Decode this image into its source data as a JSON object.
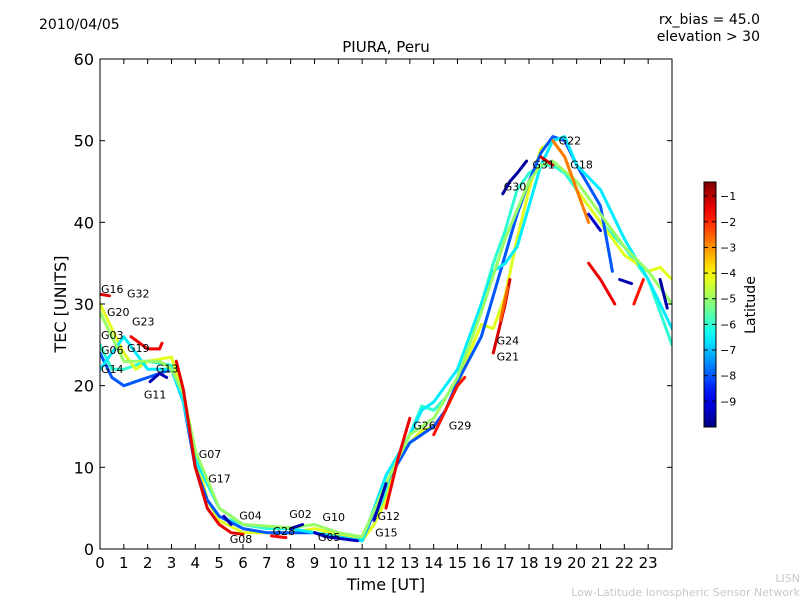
{
  "header": {
    "date": "2010/04/05",
    "rx_bias": "rx_bias = 45.0",
    "elevation": "elevation > 30"
  },
  "footer": {
    "org_short": "LISN",
    "org_long": "Low-Latitude Ionospheric Sensor Network"
  },
  "chart_data": {
    "type": "line",
    "title": "PIURA, Peru",
    "xlabel": "Time [UT]",
    "ylabel": "TEC [UNITS]",
    "xlim": [
      0,
      24
    ],
    "ylim": [
      0,
      60
    ],
    "xticks": [
      "0",
      "1",
      "2",
      "3",
      "4",
      "5",
      "6",
      "7",
      "8",
      "9",
      "10",
      "11",
      "12",
      "13",
      "14",
      "15",
      "16",
      "17",
      "18",
      "19",
      "20",
      "21",
      "22",
      "23"
    ],
    "yticks": [
      "0",
      "10",
      "20",
      "30",
      "40",
      "50",
      "60"
    ],
    "grid": false,
    "colorbar": {
      "label": "Latitude",
      "range": [
        -10,
        -0.45
      ],
      "ticks": [
        "-1",
        "-2",
        "-3",
        "-4",
        "-5",
        "-6",
        "-7",
        "-8",
        "-9"
      ],
      "colormap": "jet"
    },
    "series": [
      {
        "name": "track-green",
        "lat": -6,
        "points": [
          [
            0,
            25
          ],
          [
            0.5,
            22
          ],
          [
            1,
            22
          ],
          [
            2,
            23
          ],
          [
            3,
            22.5
          ],
          [
            3.5,
            18
          ],
          [
            4,
            11
          ],
          [
            4.5,
            6
          ],
          [
            5,
            4
          ],
          [
            6,
            3
          ],
          [
            7,
            2.5
          ],
          [
            8,
            2.5
          ],
          [
            9,
            2
          ],
          [
            10,
            1.5
          ],
          [
            11,
            1.2
          ],
          [
            11.5,
            3
          ],
          [
            12,
            7
          ],
          [
            12.5,
            11
          ],
          [
            13,
            14
          ],
          [
            13.5,
            17.5
          ],
          [
            14,
            17
          ],
          [
            14.5,
            18.5
          ],
          [
            15,
            21
          ],
          [
            15.5,
            25
          ],
          [
            16,
            30
          ],
          [
            16.5,
            35
          ],
          [
            17,
            39
          ],
          [
            17.5,
            44
          ],
          [
            18,
            46
          ],
          [
            18.5,
            47
          ],
          [
            19,
            47
          ],
          [
            19.5,
            46
          ],
          [
            20,
            44
          ],
          [
            20.5,
            42
          ],
          [
            21,
            40
          ],
          [
            22,
            37
          ],
          [
            23,
            33
          ],
          [
            24,
            25
          ]
        ]
      },
      {
        "name": "track-yellowgreen",
        "lat": -4.3,
        "points": [
          [
            0,
            30
          ],
          [
            0.5,
            27
          ],
          [
            1,
            24
          ],
          [
            1.5,
            22
          ],
          [
            2,
            23
          ],
          [
            3,
            23.5
          ],
          [
            3.5,
            19
          ],
          [
            4,
            12
          ],
          [
            4.5,
            6
          ],
          [
            5,
            3.5
          ],
          [
            6,
            2
          ],
          [
            7,
            2
          ],
          [
            8,
            2
          ],
          [
            9,
            2.5
          ],
          [
            10,
            1.8
          ],
          [
            11,
            1
          ],
          [
            11.5,
            3
          ],
          [
            12,
            6
          ],
          [
            12.5,
            11
          ],
          [
            13,
            13
          ],
          [
            13.5,
            14.5
          ],
          [
            14,
            15
          ],
          [
            14.5,
            17
          ],
          [
            15,
            20
          ],
          [
            15.5,
            24
          ],
          [
            16,
            27.5
          ],
          [
            16.5,
            27
          ],
          [
            17,
            31
          ],
          [
            17.5,
            38
          ],
          [
            18,
            44
          ],
          [
            18.5,
            49
          ],
          [
            19,
            50
          ],
          [
            19.5,
            48
          ],
          [
            20,
            44
          ],
          [
            21,
            40
          ],
          [
            22,
            36
          ],
          [
            23,
            34
          ],
          [
            23.5,
            34.5
          ],
          [
            24,
            33
          ]
        ]
      },
      {
        "name": "track-cyan",
        "lat": -8,
        "points": [
          [
            0,
            24
          ],
          [
            0.5,
            21
          ],
          [
            1,
            20
          ],
          [
            1.5,
            20.5
          ],
          [
            2,
            21
          ],
          [
            3,
            22
          ],
          [
            3.5,
            18
          ],
          [
            4,
            10
          ],
          [
            4.5,
            6
          ],
          [
            5,
            4
          ],
          [
            6,
            2.5
          ],
          [
            7,
            2
          ],
          [
            8,
            2
          ],
          [
            9,
            2
          ],
          [
            10,
            1.5
          ],
          [
            11,
            1
          ],
          [
            12,
            8
          ],
          [
            13,
            13
          ],
          [
            14,
            15
          ],
          [
            14.5,
            17
          ],
          [
            15,
            20.5
          ],
          [
            16,
            26
          ],
          [
            17,
            36
          ],
          [
            17.5,
            41
          ],
          [
            18,
            45
          ],
          [
            18.5,
            48.5
          ],
          [
            19,
            50.5
          ],
          [
            19.5,
            50
          ],
          [
            20,
            47
          ],
          [
            21,
            42
          ],
          [
            21.5,
            34
          ]
        ]
      },
      {
        "name": "track-darkgreen",
        "lat": -6.6,
        "points": [
          [
            0,
            22
          ],
          [
            0.5,
            24
          ],
          [
            1,
            26
          ],
          [
            1.5,
            24
          ],
          [
            2,
            22
          ],
          [
            3,
            22
          ],
          [
            3.5,
            18
          ],
          [
            4,
            11
          ],
          [
            5,
            5
          ],
          [
            6,
            3
          ],
          [
            8,
            2.5
          ],
          [
            10,
            1.5
          ],
          [
            11,
            1
          ],
          [
            12,
            9
          ],
          [
            13,
            14
          ],
          [
            13.5,
            17
          ],
          [
            14,
            18
          ],
          [
            15,
            22
          ],
          [
            16,
            30
          ],
          [
            16.5,
            34
          ],
          [
            17,
            35
          ],
          [
            17.5,
            37
          ],
          [
            18,
            42
          ],
          [
            18.5,
            47
          ],
          [
            19,
            50
          ],
          [
            19.5,
            50.5
          ],
          [
            20,
            47
          ],
          [
            21,
            44
          ],
          [
            22,
            38
          ],
          [
            23,
            33
          ],
          [
            24,
            27
          ]
        ]
      },
      {
        "name": "track-lightgreen",
        "lat": -5,
        "points": [
          [
            0,
            29
          ],
          [
            0.5,
            26
          ],
          [
            1,
            23
          ],
          [
            2,
            23
          ],
          [
            2.5,
            23
          ],
          [
            3,
            22
          ],
          [
            3.5,
            19
          ],
          [
            4,
            12
          ],
          [
            5,
            5
          ],
          [
            6,
            3
          ],
          [
            7,
            2.8
          ],
          [
            8,
            2.6
          ],
          [
            9,
            3
          ],
          [
            10,
            2
          ],
          [
            11,
            1.5
          ],
          [
            12,
            8
          ],
          [
            13,
            14
          ],
          [
            14,
            16
          ],
          [
            15,
            21
          ],
          [
            16,
            29
          ],
          [
            17,
            38
          ],
          [
            18,
            45
          ],
          [
            18.5,
            47
          ],
          [
            19,
            47.5
          ],
          [
            20,
            45
          ],
          [
            21,
            41
          ],
          [
            22,
            37
          ],
          [
            23,
            34
          ],
          [
            24,
            30
          ]
        ]
      },
      {
        "name": "track-red-1",
        "lat": -1.3,
        "points": [
          [
            0,
            31.2
          ],
          [
            0.4,
            31
          ]
        ]
      },
      {
        "name": "track-red-2",
        "lat": -1.5,
        "points": [
          [
            1.3,
            26
          ],
          [
            2,
            24.5
          ],
          [
            2.5,
            24.5
          ],
          [
            2.6,
            25.2
          ]
        ]
      },
      {
        "name": "track-red-3",
        "lat": -1.4,
        "points": [
          [
            3.2,
            23
          ],
          [
            3.5,
            19.5
          ],
          [
            4,
            10
          ],
          [
            4.5,
            5
          ],
          [
            5,
            3
          ],
          [
            5.5,
            2
          ],
          [
            6,
            1.8
          ]
        ]
      },
      {
        "name": "track-red-4",
        "lat": -1.6,
        "points": [
          [
            7.2,
            1.6
          ],
          [
            7.8,
            1.4
          ]
        ]
      },
      {
        "name": "track-red-5",
        "lat": -1.5,
        "points": [
          [
            12,
            5
          ],
          [
            12.5,
            11
          ],
          [
            13,
            16
          ]
        ]
      },
      {
        "name": "track-red-6",
        "lat": -1.8,
        "points": [
          [
            14,
            14
          ],
          [
            14.5,
            17
          ],
          [
            15,
            20
          ],
          [
            15.3,
            21
          ]
        ]
      },
      {
        "name": "track-red-7",
        "lat": -1.3,
        "points": [
          [
            16.5,
            24
          ],
          [
            17,
            30
          ],
          [
            17.2,
            33
          ]
        ]
      },
      {
        "name": "track-red-8",
        "lat": -1.2,
        "points": [
          [
            18.5,
            48
          ],
          [
            19,
            47
          ]
        ]
      },
      {
        "name": "track-red-9",
        "lat": -1.5,
        "points": [
          [
            20.5,
            35
          ],
          [
            21,
            33
          ],
          [
            21.6,
            30
          ]
        ]
      },
      {
        "name": "track-red-10",
        "lat": -1.8,
        "points": [
          [
            22.4,
            30
          ],
          [
            22.8,
            33
          ]
        ]
      },
      {
        "name": "track-orange-1",
        "lat": -2.6,
        "points": [
          [
            16.8,
            28
          ],
          [
            17.1,
            32
          ]
        ]
      },
      {
        "name": "track-orange-2",
        "lat": -2.8,
        "points": [
          [
            19,
            50
          ],
          [
            19.5,
            48
          ],
          [
            20,
            44
          ],
          [
            20.5,
            40
          ]
        ]
      },
      {
        "name": "track-blue-1",
        "lat": -9.5,
        "points": [
          [
            2.1,
            20.5
          ],
          [
            2.5,
            21.5
          ],
          [
            2.8,
            21
          ]
        ]
      },
      {
        "name": "track-blue-2",
        "lat": -9.5,
        "points": [
          [
            5.2,
            4
          ],
          [
            5.5,
            3
          ]
        ]
      },
      {
        "name": "track-blue-3",
        "lat": -9.6,
        "points": [
          [
            8,
            2.5
          ],
          [
            8.5,
            3
          ]
        ]
      },
      {
        "name": "track-blue-4",
        "lat": -9.4,
        "points": [
          [
            9,
            2
          ],
          [
            9.5,
            1.5
          ],
          [
            10.8,
            1
          ]
        ]
      },
      {
        "name": "track-blue-5",
        "lat": -9.5,
        "points": [
          [
            11.5,
            3.5
          ],
          [
            12,
            8
          ]
        ]
      },
      {
        "name": "track-blue-6",
        "lat": -9.7,
        "points": [
          [
            16.9,
            43.5
          ],
          [
            17.2,
            45
          ],
          [
            17.5,
            46
          ],
          [
            17.9,
            47.5
          ]
        ]
      },
      {
        "name": "track-blue-7",
        "lat": -9.3,
        "points": [
          [
            20.5,
            41
          ],
          [
            21,
            39
          ]
        ]
      },
      {
        "name": "track-blue-8",
        "lat": -9.5,
        "points": [
          [
            21.8,
            33
          ],
          [
            22.3,
            32.5
          ]
        ]
      },
      {
        "name": "track-blue-9",
        "lat": -9.6,
        "points": [
          [
            23.5,
            33
          ],
          [
            23.8,
            29.5
          ]
        ]
      }
    ],
    "annotations": [
      {
        "text": "G16",
        "x": 0,
        "y": 31.2
      },
      {
        "text": "G20",
        "x": 0.25,
        "y": 29.9
      },
      {
        "text": "G32",
        "x": 0,
        "y": 29.2
      },
      {
        "text": "G03",
        "x": 0,
        "y": 25.6
      },
      {
        "text": "G06",
        "x": 0,
        "y": 25.2
      },
      {
        "text": "G19",
        "x": 0,
        "y": 24
      },
      {
        "text": "G14",
        "x": 0,
        "y": 21.4
      },
      {
        "text": "G23",
        "x": 1.3,
        "y": 25.8
      },
      {
        "text": "G13",
        "x": 2.3,
        "y": 21.5
      },
      {
        "text": "G11",
        "x": 1.8,
        "y": 19.8
      },
      {
        "text": "G07",
        "x": 4.1,
        "y": 11
      },
      {
        "text": "G17",
        "x": 4.5,
        "y": 9.5
      },
      {
        "text": "G04",
        "x": 5.8,
        "y": 3.5
      },
      {
        "text": "G08",
        "x": 5.4,
        "y": 2.1
      },
      {
        "text": "G28",
        "x": 7.2,
        "y": 1.6
      },
      {
        "text": "G02",
        "x": 7.9,
        "y": 3.7
      },
      {
        "text": "G10",
        "x": 8.2,
        "y": 3.3
      },
      {
        "text": "G05",
        "x": 9.1,
        "y": 2.3
      },
      {
        "text": "G12",
        "x": 11.6,
        "y": 3.4
      },
      {
        "text": "G15",
        "x": 11.5,
        "y": 2.9
      },
      {
        "text": "G26",
        "x": 13.1,
        "y": 14.5
      },
      {
        "text": "G29",
        "x": 13.5,
        "y": 14.5
      },
      {
        "text": "G24",
        "x": 16.6,
        "y": 24.9
      },
      {
        "text": "G21",
        "x": 16.6,
        "y": 24.4
      },
      {
        "text": "G30",
        "x": 16.9,
        "y": 43.8
      },
      {
        "text": "G31",
        "x": 18.1,
        "y": 46.5
      },
      {
        "text": "G18",
        "x": 18.6,
        "y": 46.5
      },
      {
        "text": "G22",
        "x": 19.2,
        "y": 46.5
      }
    ]
  }
}
